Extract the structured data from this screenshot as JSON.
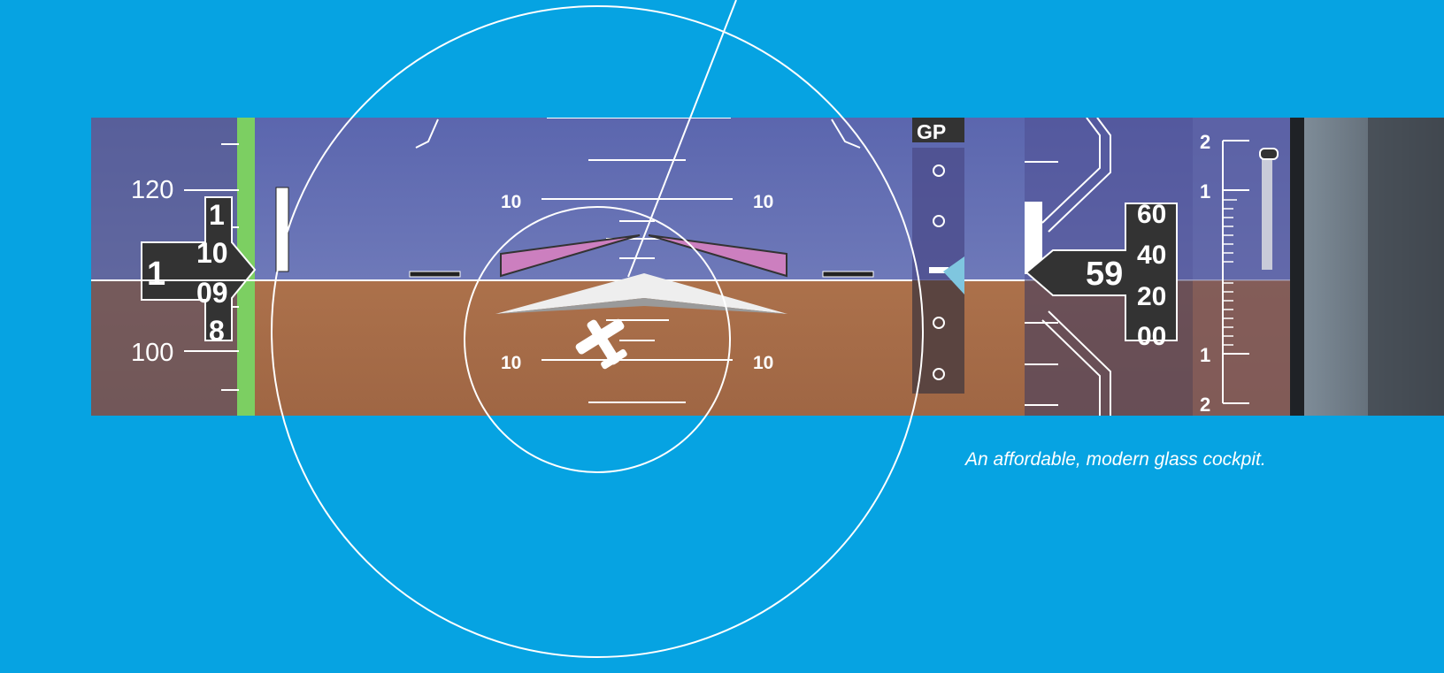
{
  "caption": "An affordable, modern glass cockpit.",
  "pfd": {
    "airspeed": {
      "tick_labels": [
        "120",
        "100"
      ],
      "readout_lead": "1",
      "drum_digits": [
        "1",
        "10",
        "09",
        "8"
      ]
    },
    "attitude": {
      "pitch_labels": [
        "10",
        "10",
        "10",
        "10"
      ]
    },
    "glidepath": {
      "label": "GP"
    },
    "altitude": {
      "readout": "59",
      "drum_digits": [
        "60",
        "40",
        "20",
        "00"
      ]
    },
    "vsi": {
      "tick_labels": [
        "2",
        "1",
        "1",
        "2"
      ]
    }
  },
  "colors": {
    "background": "#06a3e2",
    "sky": "#6b77b8",
    "ground": "#a8704a",
    "wing_bars": "#cc7fbf",
    "airspeed_tape_green": "#7ccf62",
    "glidepath_pointer": "#7fc6df"
  }
}
